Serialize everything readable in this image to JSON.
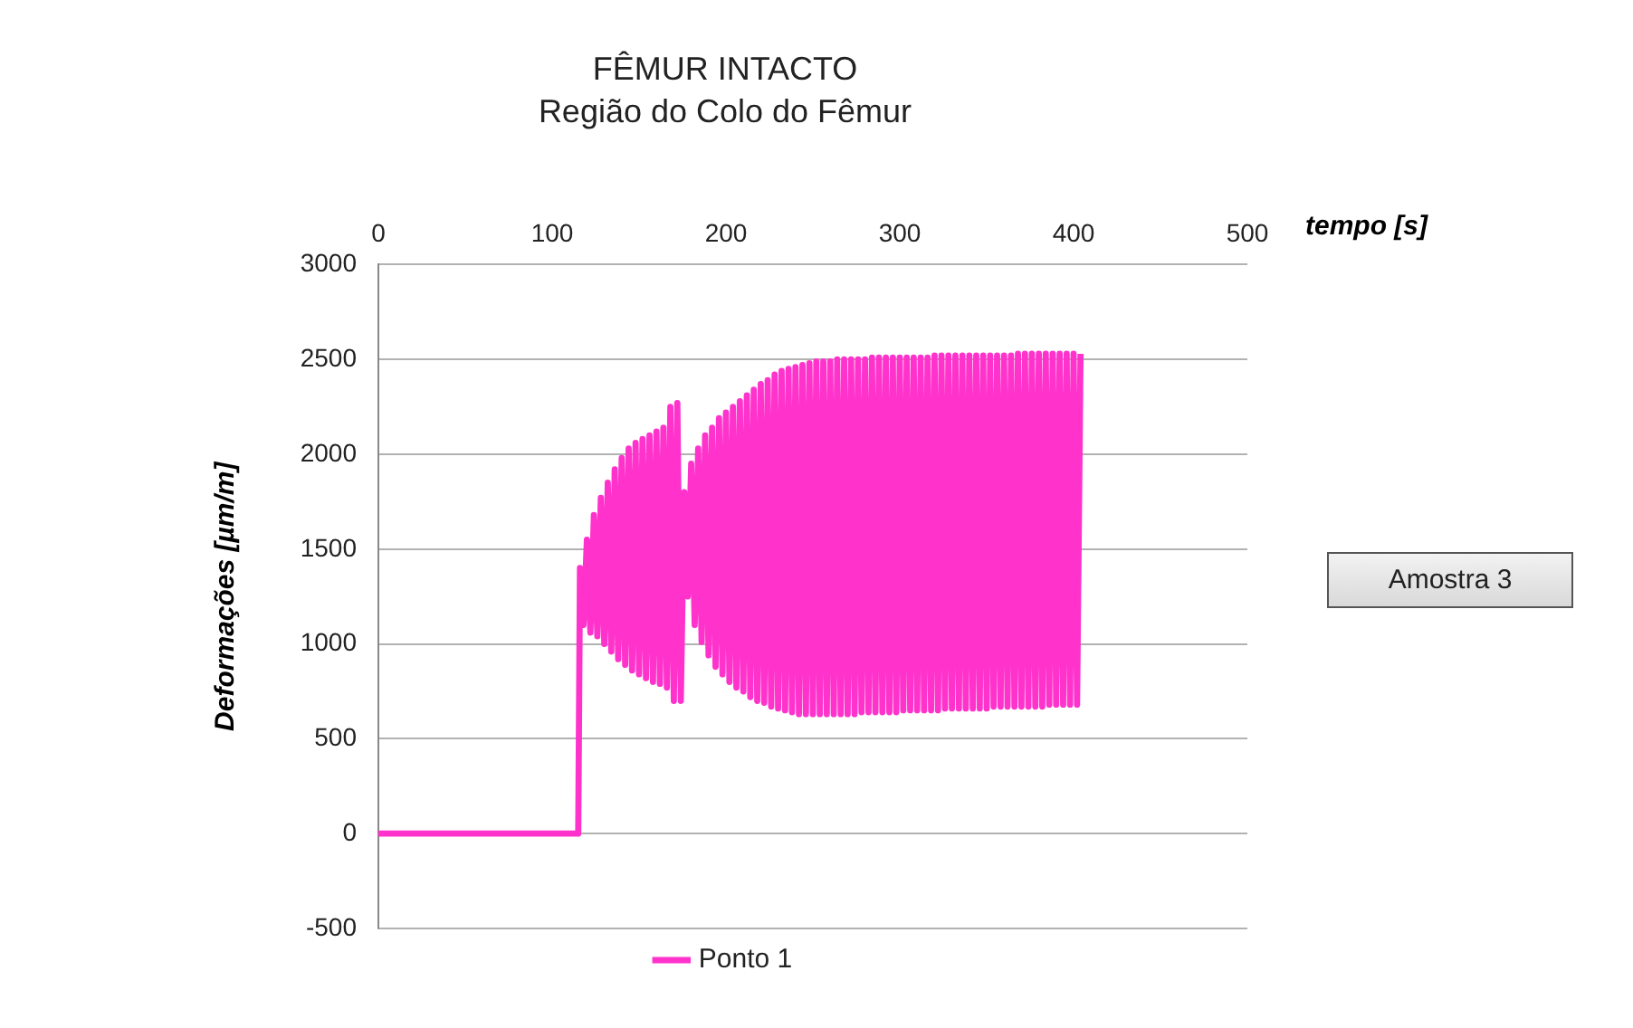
{
  "chart_data": {
    "type": "line",
    "title": "FÊMUR INTACTO",
    "subtitle": "Região do Colo do Fêmur",
    "xlabel": "tempo [s]",
    "ylabel": "Deformações [µm/m]",
    "annotations": [
      "Amostra 3"
    ],
    "x": [
      0,
      114,
      115,
      116,
      118,
      120,
      122,
      124,
      126,
      128,
      130,
      132,
      134,
      136,
      138,
      140,
      142,
      144,
      146,
      148,
      150,
      152,
      154,
      156,
      158,
      160,
      162,
      164,
      166,
      168,
      170,
      172,
      174,
      176,
      178,
      180,
      182,
      184,
      186,
      188,
      190,
      192,
      194,
      196,
      198,
      200,
      202,
      204,
      206,
      208,
      210,
      212,
      214,
      216,
      218,
      220,
      222,
      224,
      226,
      228,
      230,
      232,
      234,
      236,
      238,
      240,
      242,
      244,
      246,
      248,
      250,
      252,
      254,
      256,
      258,
      260,
      262,
      264,
      266,
      268,
      270,
      272,
      274,
      276,
      278,
      280,
      282,
      284,
      286,
      288,
      290,
      292,
      294,
      296,
      298,
      300,
      302,
      304,
      306,
      308,
      310,
      312,
      314,
      316,
      318,
      320,
      322,
      324,
      326,
      328,
      330,
      332,
      334,
      336,
      338,
      340,
      342,
      344,
      346,
      348,
      350,
      352,
      354,
      356,
      358,
      360,
      362,
      364,
      366,
      368,
      370,
      372,
      374,
      376,
      378,
      380,
      382,
      384,
      386,
      388,
      390,
      392,
      394,
      396,
      398,
      400,
      402,
      404
    ],
    "series": [
      {
        "name": "Ponto 1",
        "color": "#ff33cc",
        "values": [
          0,
          0,
          0,
          1400,
          1100,
          1550,
          1060,
          1680,
          1040,
          1770,
          1000,
          1850,
          960,
          1920,
          920,
          1980,
          890,
          2030,
          860,
          2060,
          840,
          2080,
          820,
          2100,
          800,
          2120,
          790,
          2140,
          770,
          2250,
          700,
          2270,
          700,
          1800,
          1250,
          1950,
          1100,
          2030,
          1010,
          2100,
          940,
          2140,
          880,
          2190,
          840,
          2220,
          800,
          2250,
          770,
          2280,
          750,
          2310,
          720,
          2340,
          700,
          2370,
          690,
          2390,
          670,
          2420,
          660,
          2440,
          650,
          2450,
          640,
          2460,
          630,
          2470,
          630,
          2480,
          630,
          2490,
          630,
          2490,
          630,
          2490,
          630,
          2500,
          630,
          2500,
          630,
          2500,
          630,
          2500,
          640,
          2500,
          640,
          2510,
          640,
          2510,
          640,
          2510,
          640,
          2510,
          640,
          2510,
          650,
          2510,
          650,
          2510,
          650,
          2510,
          650,
          2510,
          650,
          2520,
          650,
          2520,
          660,
          2520,
          660,
          2520,
          660,
          2520,
          660,
          2520,
          660,
          2520,
          660,
          2520,
          660,
          2520,
          670,
          2520,
          670,
          2520,
          670,
          2520,
          670,
          2530,
          670,
          2530,
          670,
          2530,
          670,
          2530,
          670,
          2530,
          680,
          2530,
          680,
          2530,
          680,
          2530,
          680,
          2530,
          680,
          2530
        ]
      }
    ],
    "xlim": [
      0,
      500
    ],
    "xticks": [
      0,
      100,
      200,
      300,
      400,
      500
    ],
    "ylim": [
      -500,
      3000
    ],
    "yticks": [
      -500,
      0,
      500,
      1000,
      1500,
      2000,
      2500,
      3000
    ],
    "grid": "y",
    "legend": "bottom",
    "marker": "none",
    "line_style": "solid"
  }
}
